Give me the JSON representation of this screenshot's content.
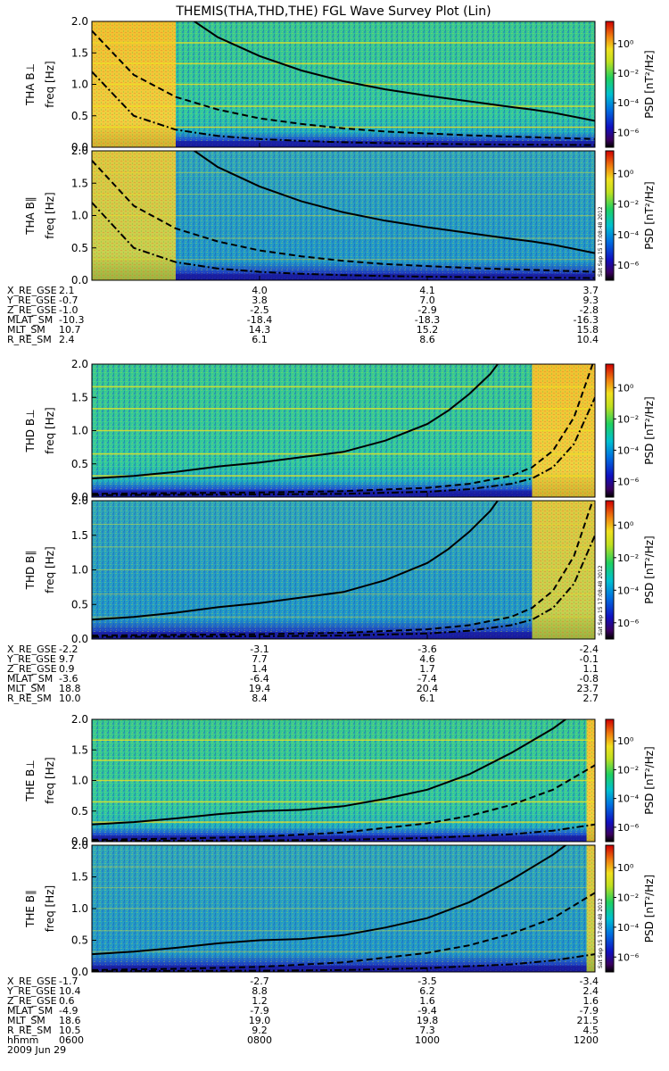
{
  "title": "THEMIS(THA,THD,THE) FGL Wave Survey Plot (Lin)",
  "freq_ylabel": "freq [Hz]",
  "freq_ticks": [
    "0.0",
    "0.5",
    "1.0",
    "1.5",
    "2.0"
  ],
  "colorbar": {
    "label": "PSD [nT²/Hz]",
    "ticks": [
      "10⁰",
      "10⁻²",
      "10⁻⁴",
      "10⁻⁶"
    ],
    "log_range": [
      -7,
      1.5
    ],
    "tick_values": [
      0,
      -2,
      -4,
      -6
    ]
  },
  "stamp": "Sat Sep 15 17:08:48 2012",
  "colors": {
    "colormap": "rainbow",
    "line": "#000000",
    "band": "#f0e020"
  },
  "chart_data": {
    "type": "heatmap",
    "xaxis": {
      "hhmm": [
        "0600",
        "0800",
        "1000",
        "1200"
      ],
      "date": "2009 Jun 29",
      "range_hours": [
        6,
        12
      ]
    },
    "yaxis": {
      "label": "freq [Hz]",
      "range": [
        0,
        2.0
      ],
      "ticks": [
        0,
        0.5,
        1.0,
        1.5,
        2.0
      ]
    },
    "panels": [
      {
        "probe": "THA",
        "title": "THA B⊥",
        "burst_end_hour": 7.0,
        "burst_side": "left",
        "series": [
          {
            "style": "solid",
            "x": [
              6.0,
              6.5,
              6.75,
              7.0,
              7.5,
              8.0,
              8.5,
              9.0,
              9.5,
              10.0,
              10.5,
              11.0,
              11.25,
              11.5,
              12.0
            ],
            "y": [
              5.2,
              3.4,
              2.6,
              2.2,
              1.75,
              1.45,
              1.22,
              1.05,
              0.92,
              0.82,
              0.73,
              0.64,
              0.6,
              0.55,
              0.42
            ]
          },
          {
            "style": "dashed",
            "x": [
              6.0,
              6.5,
              7.0,
              7.5,
              8.0,
              8.5,
              9.0,
              9.5,
              10.0,
              10.5,
              11.0,
              11.5,
              12.0
            ],
            "y": [
              1.85,
              1.15,
              0.8,
              0.6,
              0.46,
              0.37,
              0.3,
              0.25,
              0.22,
              0.19,
              0.17,
              0.15,
              0.13
            ]
          },
          {
            "style": "dashdot",
            "x": [
              6.0,
              6.5,
              7.0,
              7.5,
              8.0,
              8.5,
              9.0,
              9.5,
              10.0,
              10.5,
              11.0,
              11.5,
              12.0
            ],
            "y": [
              1.2,
              0.5,
              0.28,
              0.18,
              0.13,
              0.1,
              0.08,
              0.065,
              0.055,
              0.048,
              0.042,
              0.038,
              0.035
            ]
          }
        ]
      },
      {
        "probe": "THA",
        "title": "THA B∥",
        "burst_end_hour": 7.0,
        "burst_side": "left",
        "series": [
          {
            "style": "solid",
            "x": [
              6.0,
              6.5,
              6.75,
              7.0,
              7.5,
              8.0,
              8.5,
              9.0,
              9.5,
              10.0,
              10.5,
              11.0,
              11.25,
              11.5,
              12.0
            ],
            "y": [
              5.2,
              3.4,
              2.6,
              2.2,
              1.75,
              1.45,
              1.22,
              1.05,
              0.92,
              0.82,
              0.73,
              0.64,
              0.6,
              0.55,
              0.42
            ]
          },
          {
            "style": "dashed",
            "x": [
              6.0,
              6.5,
              7.0,
              7.5,
              8.0,
              8.5,
              9.0,
              9.5,
              10.0,
              10.5,
              11.0,
              11.5,
              12.0
            ],
            "y": [
              1.85,
              1.15,
              0.8,
              0.6,
              0.46,
              0.37,
              0.3,
              0.25,
              0.22,
              0.19,
              0.17,
              0.15,
              0.13
            ]
          },
          {
            "style": "dashdot",
            "x": [
              6.0,
              6.5,
              7.0,
              7.5,
              8.0,
              8.5,
              9.0,
              9.5,
              10.0,
              10.5,
              11.0,
              11.5,
              12.0
            ],
            "y": [
              1.2,
              0.5,
              0.28,
              0.18,
              0.13,
              0.1,
              0.08,
              0.065,
              0.055,
              0.048,
              0.042,
              0.038,
              0.035
            ]
          }
        ]
      },
      {
        "probe": "THD",
        "title": "THD B⊥",
        "burst_end_hour": 11.25,
        "burst_side": "right",
        "series": [
          {
            "style": "solid",
            "x": [
              6.0,
              6.5,
              7.0,
              7.5,
              8.0,
              8.5,
              9.0,
              9.5,
              10.0,
              10.25,
              10.5,
              10.75,
              10.9
            ],
            "y": [
              0.28,
              0.32,
              0.38,
              0.46,
              0.52,
              0.6,
              0.68,
              0.85,
              1.1,
              1.3,
              1.55,
              1.85,
              2.1
            ]
          },
          {
            "style": "dashed",
            "x": [
              6.0,
              7.0,
              8.0,
              9.0,
              10.0,
              10.5,
              11.0,
              11.25,
              11.5,
              11.75,
              12.0
            ],
            "y": [
              0.05,
              0.06,
              0.07,
              0.09,
              0.14,
              0.2,
              0.32,
              0.45,
              0.7,
              1.2,
              2.1
            ]
          },
          {
            "style": "dashdot",
            "x": [
              6.0,
              7.0,
              8.0,
              9.0,
              10.0,
              10.5,
              11.0,
              11.25,
              11.5,
              11.75,
              12.0
            ],
            "y": [
              0.03,
              0.035,
              0.04,
              0.05,
              0.08,
              0.12,
              0.2,
              0.28,
              0.45,
              0.8,
              1.5
            ]
          }
        ]
      },
      {
        "probe": "THD",
        "title": "THD B∥",
        "burst_end_hour": 11.25,
        "burst_side": "right",
        "series": [
          {
            "style": "solid",
            "x": [
              6.0,
              6.5,
              7.0,
              7.5,
              8.0,
              8.5,
              9.0,
              9.5,
              10.0,
              10.25,
              10.5,
              10.75,
              10.9
            ],
            "y": [
              0.28,
              0.32,
              0.38,
              0.46,
              0.52,
              0.6,
              0.68,
              0.85,
              1.1,
              1.3,
              1.55,
              1.85,
              2.1
            ]
          },
          {
            "style": "dashed",
            "x": [
              6.0,
              7.0,
              8.0,
              9.0,
              10.0,
              10.5,
              11.0,
              11.25,
              11.5,
              11.75,
              12.0
            ],
            "y": [
              0.05,
              0.06,
              0.07,
              0.09,
              0.14,
              0.2,
              0.32,
              0.45,
              0.7,
              1.2,
              2.1
            ]
          },
          {
            "style": "dashdot",
            "x": [
              6.0,
              7.0,
              8.0,
              9.0,
              10.0,
              10.5,
              11.0,
              11.25,
              11.5,
              11.75,
              12.0
            ],
            "y": [
              0.03,
              0.035,
              0.04,
              0.05,
              0.08,
              0.12,
              0.2,
              0.28,
              0.45,
              0.8,
              1.5
            ]
          }
        ]
      },
      {
        "probe": "THE",
        "title": "THE B⊥",
        "burst_end_hour": 11.9,
        "burst_side": "right",
        "series": [
          {
            "style": "solid",
            "x": [
              6.0,
              6.5,
              7.0,
              7.5,
              8.0,
              8.5,
              9.0,
              9.5,
              10.0,
              10.5,
              11.0,
              11.5,
              11.75
            ],
            "y": [
              0.28,
              0.32,
              0.38,
              0.45,
              0.5,
              0.52,
              0.58,
              0.7,
              0.85,
              1.1,
              1.45,
              1.85,
              2.1
            ]
          },
          {
            "style": "dashed",
            "x": [
              6.0,
              7.0,
              8.0,
              9.0,
              10.0,
              10.5,
              11.0,
              11.5,
              12.0
            ],
            "y": [
              0.03,
              0.05,
              0.08,
              0.15,
              0.3,
              0.42,
              0.6,
              0.85,
              1.25
            ]
          },
          {
            "style": "dashdot",
            "x": [
              6.0,
              7.0,
              8.0,
              9.0,
              10.0,
              11.0,
              11.5,
              12.0
            ],
            "y": [
              0.01,
              0.015,
              0.02,
              0.03,
              0.06,
              0.12,
              0.18,
              0.28
            ]
          }
        ]
      },
      {
        "probe": "THE",
        "title": "THE B∥",
        "burst_end_hour": 11.9,
        "burst_side": "right",
        "series": [
          {
            "style": "solid",
            "x": [
              6.0,
              6.5,
              7.0,
              7.5,
              8.0,
              8.5,
              9.0,
              9.5,
              10.0,
              10.5,
              11.0,
              11.5,
              11.75
            ],
            "y": [
              0.28,
              0.32,
              0.38,
              0.45,
              0.5,
              0.52,
              0.58,
              0.7,
              0.85,
              1.1,
              1.45,
              1.85,
              2.1
            ]
          },
          {
            "style": "dashed",
            "x": [
              6.0,
              7.0,
              8.0,
              9.0,
              10.0,
              10.5,
              11.0,
              11.5,
              12.0
            ],
            "y": [
              0.03,
              0.05,
              0.08,
              0.15,
              0.3,
              0.42,
              0.6,
              0.85,
              1.25
            ]
          },
          {
            "style": "dashdot",
            "x": [
              6.0,
              7.0,
              8.0,
              9.0,
              10.0,
              11.0,
              11.5,
              12.0
            ],
            "y": [
              0.01,
              0.015,
              0.02,
              0.03,
              0.06,
              0.12,
              0.18,
              0.28
            ]
          }
        ]
      }
    ]
  },
  "ephemeris": [
    {
      "probe": "THA",
      "rows": [
        {
          "label": "X_RE_GSE",
          "values": [
            "2.1",
            "4.0",
            "4.1",
            "3.7"
          ]
        },
        {
          "label": "Y_RE_GSE",
          "values": [
            "-0.7",
            "3.8",
            "7.0",
            "9.3"
          ]
        },
        {
          "label": "Z_RE_GSE",
          "values": [
            "-1.0",
            "-2.5",
            "-2.9",
            "-2.8"
          ]
        },
        {
          "label": "MLAT_SM",
          "values": [
            "-10.3",
            "-18.4",
            "-18.3",
            "-16.3"
          ]
        },
        {
          "label": "MLT_SM",
          "values": [
            "10.7",
            "14.3",
            "15.2",
            "15.8"
          ]
        },
        {
          "label": "R_RE_SM",
          "values": [
            "2.4",
            "6.1",
            "8.6",
            "10.4"
          ]
        }
      ]
    },
    {
      "probe": "THD",
      "rows": [
        {
          "label": "X_RE_GSE",
          "values": [
            "-2.2",
            "-3.1",
            "-3.6",
            "-2.4"
          ]
        },
        {
          "label": "Y_RE_GSE",
          "values": [
            "9.7",
            "7.7",
            "4.6",
            "-0.1"
          ]
        },
        {
          "label": "Z_RE_GSE",
          "values": [
            "0.9",
            "1.4",
            "1.7",
            "1.1"
          ]
        },
        {
          "label": "MLAT_SM",
          "values": [
            "-3.6",
            "-6.4",
            "-7.4",
            "-0.8"
          ]
        },
        {
          "label": "MLT_SM",
          "values": [
            "18.8",
            "19.4",
            "20.4",
            "23.7"
          ]
        },
        {
          "label": "R_RE_SM",
          "values": [
            "10.0",
            "8.4",
            "6.1",
            "2.7"
          ]
        }
      ]
    },
    {
      "probe": "THE",
      "rows": [
        {
          "label": "X_RE_GSE",
          "values": [
            "-1.7",
            "-2.7",
            "-3.5",
            "-3.4"
          ]
        },
        {
          "label": "Y_RE_GSE",
          "values": [
            "10.4",
            "8.8",
            "6.2",
            "2.4"
          ]
        },
        {
          "label": "Z_RE_GSE",
          "values": [
            "0.6",
            "1.2",
            "1.6",
            "1.6"
          ]
        },
        {
          "label": "MLAT_SM",
          "values": [
            "-4.9",
            "-7.9",
            "-9.4",
            "-7.9"
          ]
        },
        {
          "label": "MLT_SM",
          "values": [
            "18.6",
            "19.0",
            "19.8",
            "21.5"
          ]
        },
        {
          "label": "R_RE_SM",
          "values": [
            "10.5",
            "9.2",
            "7.3",
            "4.5"
          ]
        }
      ]
    }
  ],
  "time_axis": {
    "label": "hhmm",
    "date": "2009 Jun 29",
    "ticks": [
      "0600",
      "0800",
      "1000",
      "1200"
    ]
  }
}
